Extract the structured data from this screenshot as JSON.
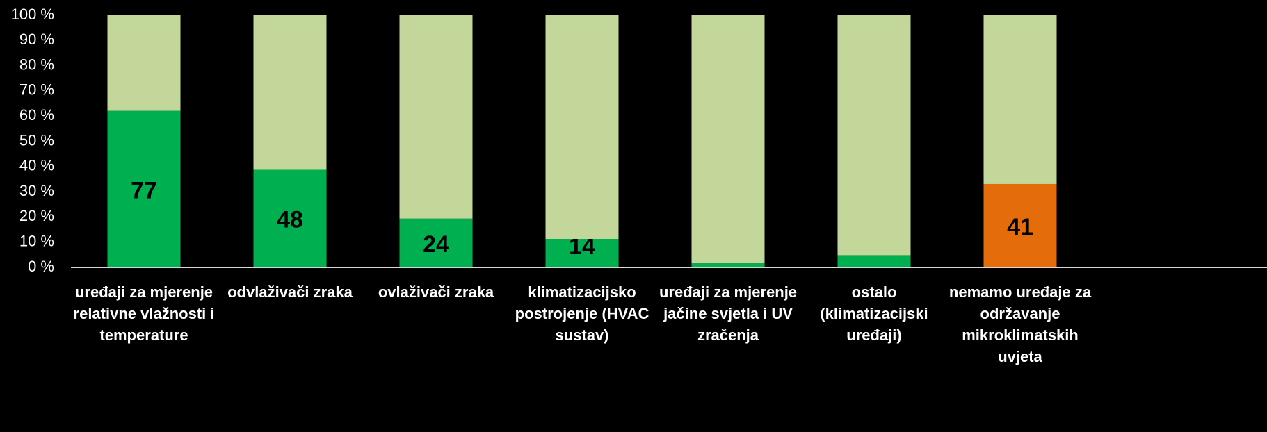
{
  "chart_data": {
    "type": "bar",
    "stacking": "percent",
    "categories": [
      "uređaji za mjerenje relativne vlažnosti i temperature",
      "odvlaživači zraka",
      "ovlaživači zraka",
      "klimatizacijsko postrojenje (HVAC sustav)",
      "uređaji za mjerenje jačine svjetla i UV zračenja",
      "ostalo (klimatizacijski uređaji)",
      "nemamo uređaje za održavanje mikroklimatskih uvjeta"
    ],
    "series": [
      {
        "colors": [
          "#00b050",
          "#00b050",
          "#00b050",
          "#00b050",
          "#00b050",
          "#00b050",
          "#e46c0a"
        ],
        "values": [
          77,
          48,
          24,
          14,
          2,
          6,
          41
        ]
      },
      {
        "color": "#c4d79b",
        "values": [
          47,
          76,
          100,
          110,
          122,
          118,
          83
        ]
      }
    ],
    "ylim": [
      0,
      100
    ],
    "yticks": [
      {
        "value": 0,
        "label": "0 %"
      },
      {
        "value": 10,
        "label": "10 %"
      },
      {
        "value": 20,
        "label": "20 %"
      },
      {
        "value": 30,
        "label": "30 %"
      },
      {
        "value": 40,
        "label": "40 %"
      },
      {
        "value": 50,
        "label": "50 %"
      },
      {
        "value": 60,
        "label": "60 %"
      },
      {
        "value": 70,
        "label": "70 %"
      },
      {
        "value": 80,
        "label": "80 %"
      },
      {
        "value": 90,
        "label": "90 %"
      },
      {
        "value": 100,
        "label": "100 %"
      }
    ]
  }
}
